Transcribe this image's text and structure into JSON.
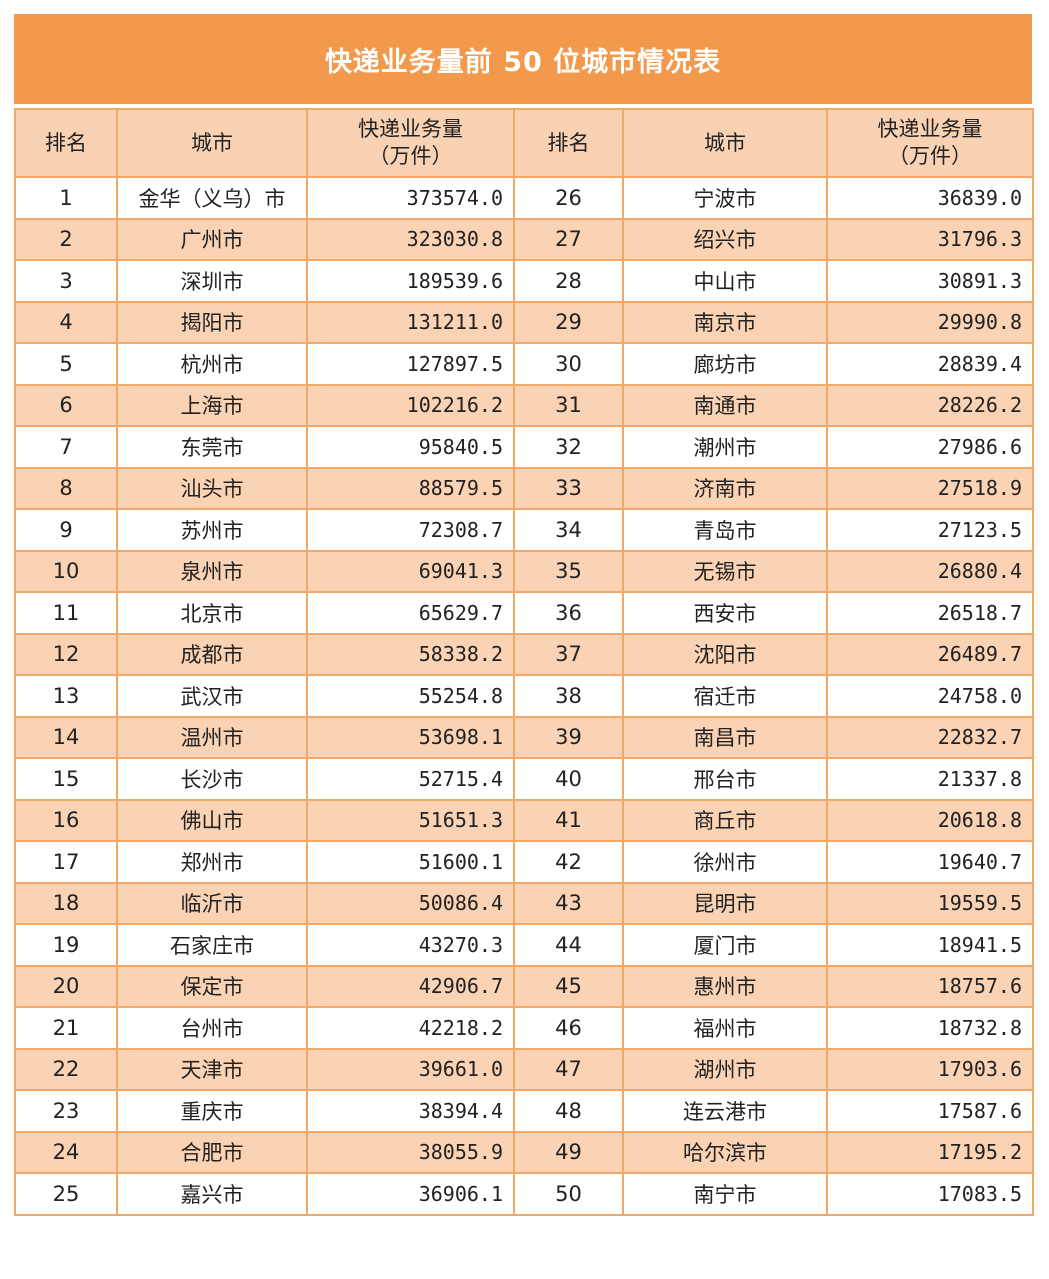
{
  "title": "快递业务量前 50 位城市情况表",
  "colors": {
    "title_bg": "#F3994B",
    "header_bg": "#F9D2B3",
    "alt_row_bg": "#FAD2B4",
    "border": "#F2A867"
  },
  "headers": {
    "rank": "排名",
    "city": "城市",
    "volume_line1": "快递业务量",
    "volume_line2": "（万件）"
  },
  "rows": [
    {
      "rank": "1",
      "city": "金华（义乌）市",
      "volume": "373574.0"
    },
    {
      "rank": "2",
      "city": "广州市",
      "volume": "323030.8"
    },
    {
      "rank": "3",
      "city": "深圳市",
      "volume": "189539.6"
    },
    {
      "rank": "4",
      "city": "揭阳市",
      "volume": "131211.0"
    },
    {
      "rank": "5",
      "city": "杭州市",
      "volume": "127897.5"
    },
    {
      "rank": "6",
      "city": "上海市",
      "volume": "102216.2"
    },
    {
      "rank": "7",
      "city": "东莞市",
      "volume": "95840.5"
    },
    {
      "rank": "8",
      "city": "汕头市",
      "volume": "88579.5"
    },
    {
      "rank": "9",
      "city": "苏州市",
      "volume": "72308.7"
    },
    {
      "rank": "10",
      "city": "泉州市",
      "volume": "69041.3"
    },
    {
      "rank": "11",
      "city": "北京市",
      "volume": "65629.7"
    },
    {
      "rank": "12",
      "city": "成都市",
      "volume": "58338.2"
    },
    {
      "rank": "13",
      "city": "武汉市",
      "volume": "55254.8"
    },
    {
      "rank": "14",
      "city": "温州市",
      "volume": "53698.1"
    },
    {
      "rank": "15",
      "city": "长沙市",
      "volume": "52715.4"
    },
    {
      "rank": "16",
      "city": "佛山市",
      "volume": "51651.3"
    },
    {
      "rank": "17",
      "city": "郑州市",
      "volume": "51600.1"
    },
    {
      "rank": "18",
      "city": "临沂市",
      "volume": "50086.4"
    },
    {
      "rank": "19",
      "city": "石家庄市",
      "volume": "43270.3"
    },
    {
      "rank": "20",
      "city": "保定市",
      "volume": "42906.7"
    },
    {
      "rank": "21",
      "city": "台州市",
      "volume": "42218.2"
    },
    {
      "rank": "22",
      "city": "天津市",
      "volume": "39661.0"
    },
    {
      "rank": "23",
      "city": "重庆市",
      "volume": "38394.4"
    },
    {
      "rank": "24",
      "city": "合肥市",
      "volume": "38055.9"
    },
    {
      "rank": "25",
      "city": "嘉兴市",
      "volume": "36906.1"
    },
    {
      "rank": "26",
      "city": "宁波市",
      "volume": "36839.0"
    },
    {
      "rank": "27",
      "city": "绍兴市",
      "volume": "31796.3"
    },
    {
      "rank": "28",
      "city": "中山市",
      "volume": "30891.3"
    },
    {
      "rank": "29",
      "city": "南京市",
      "volume": "29990.8"
    },
    {
      "rank": "30",
      "city": "廊坊市",
      "volume": "28839.4"
    },
    {
      "rank": "31",
      "city": "南通市",
      "volume": "28226.2"
    },
    {
      "rank": "32",
      "city": "潮州市",
      "volume": "27986.6"
    },
    {
      "rank": "33",
      "city": "济南市",
      "volume": "27518.9"
    },
    {
      "rank": "34",
      "city": "青岛市",
      "volume": "27123.5"
    },
    {
      "rank": "35",
      "city": "无锡市",
      "volume": "26880.4"
    },
    {
      "rank": "36",
      "city": "西安市",
      "volume": "26518.7"
    },
    {
      "rank": "37",
      "city": "沈阳市",
      "volume": "26489.7"
    },
    {
      "rank": "38",
      "city": "宿迁市",
      "volume": "24758.0"
    },
    {
      "rank": "39",
      "city": "南昌市",
      "volume": "22832.7"
    },
    {
      "rank": "40",
      "city": "邢台市",
      "volume": "21337.8"
    },
    {
      "rank": "41",
      "city": "商丘市",
      "volume": "20618.8"
    },
    {
      "rank": "42",
      "city": "徐州市",
      "volume": "19640.7"
    },
    {
      "rank": "43",
      "city": "昆明市",
      "volume": "19559.5"
    },
    {
      "rank": "44",
      "city": "厦门市",
      "volume": "18941.5"
    },
    {
      "rank": "45",
      "city": "惠州市",
      "volume": "18757.6"
    },
    {
      "rank": "46",
      "city": "福州市",
      "volume": "18732.8"
    },
    {
      "rank": "47",
      "city": "湖州市",
      "volume": "17903.6"
    },
    {
      "rank": "48",
      "city": "连云港市",
      "volume": "17587.6"
    },
    {
      "rank": "49",
      "city": "哈尔滨市",
      "volume": "17195.2"
    },
    {
      "rank": "50",
      "city": "南宁市",
      "volume": "17083.5"
    }
  ]
}
